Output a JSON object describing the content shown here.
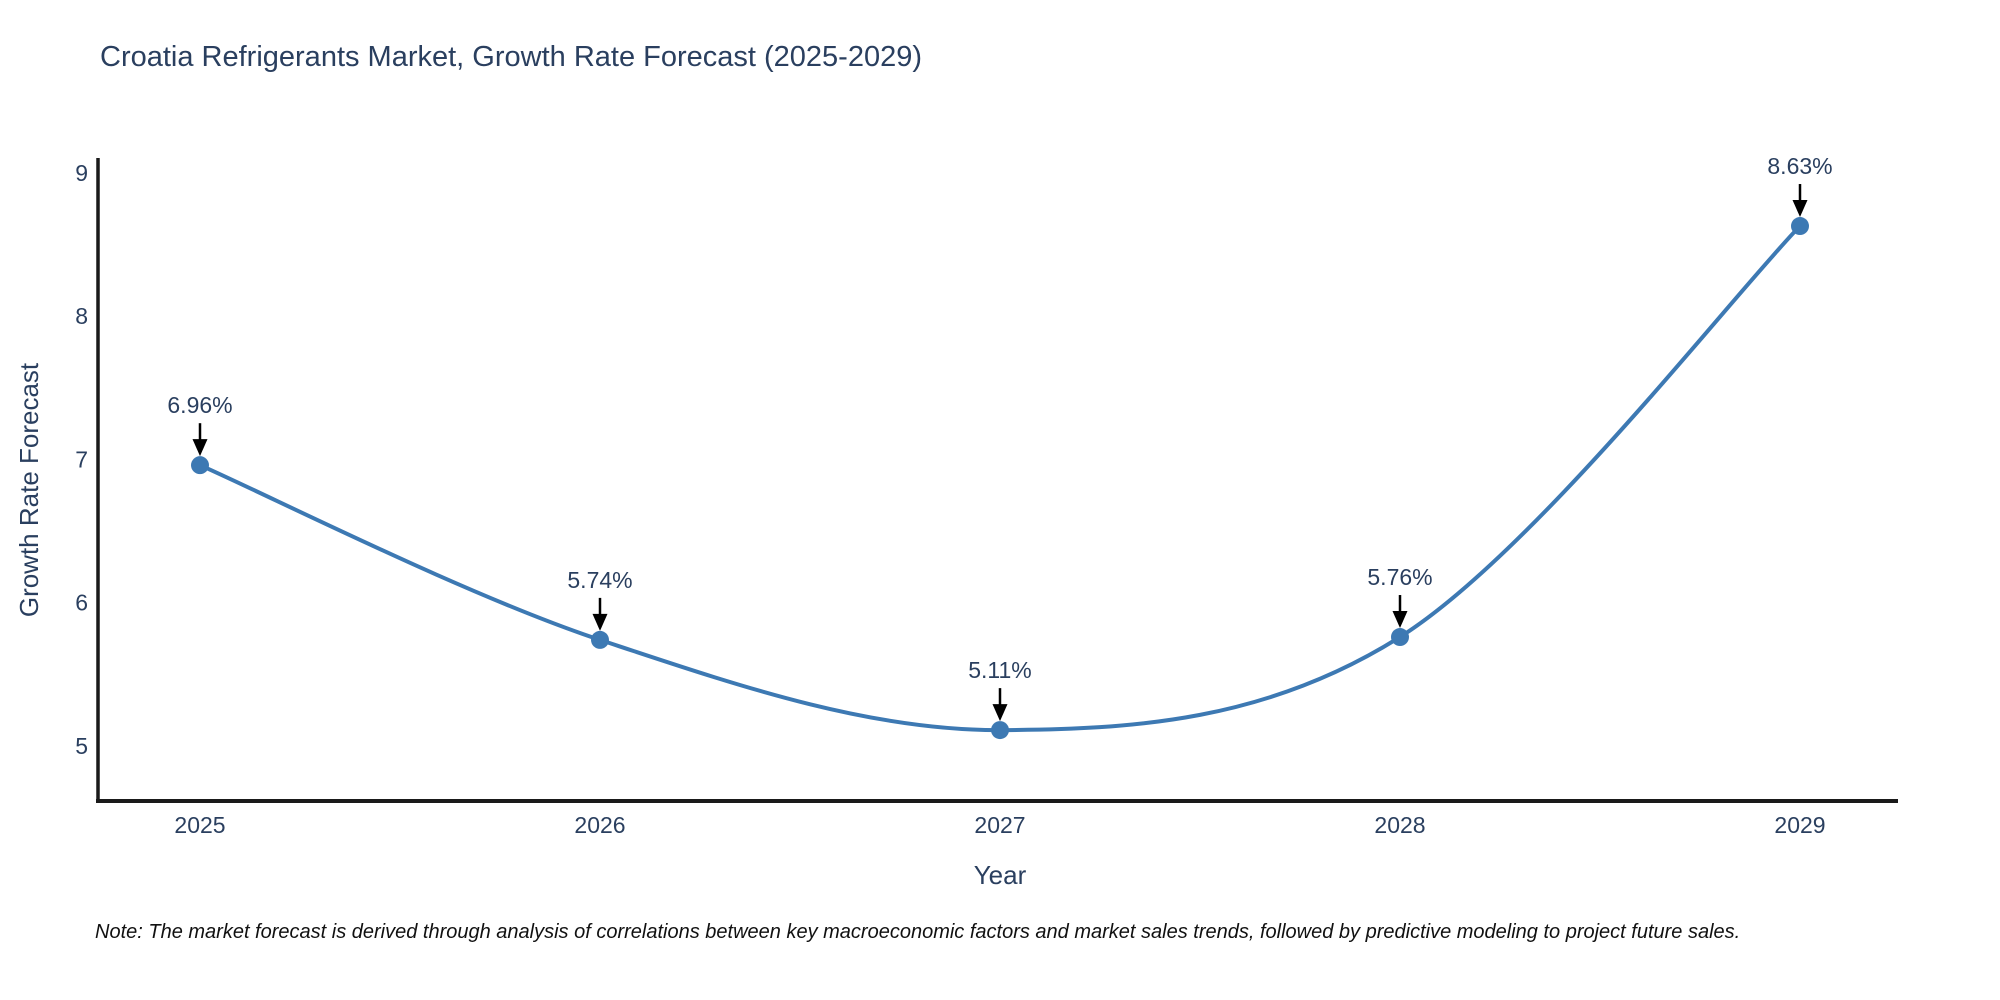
{
  "colors": {
    "line": "#3d79b3",
    "marker": "#3d79b3",
    "axis": "#1a1a1a",
    "text": "#2a3f5f",
    "note_text": "#111111",
    "arrow": "#000000",
    "background": "#ffffff"
  },
  "chart_data": {
    "type": "line",
    "line_shape": "spline",
    "title": "Croatia Refrigerants Market, Growth Rate Forecast (2025-2029)",
    "xlabel": "Year",
    "ylabel": "Growth Rate Forecast",
    "note": "Note: The market forecast is derived through analysis of correlations between key macroeconomic factors and market sales trends, followed by predictive modeling to project future sales.",
    "x": [
      2025,
      2026,
      2027,
      2028,
      2029
    ],
    "values": [
      6.96,
      5.74,
      5.11,
      5.76,
      8.63
    ],
    "labels": [
      "6.96%",
      "5.74%",
      "5.11%",
      "5.76%",
      "8.63%"
    ],
    "yticks": [
      5,
      6,
      7,
      8,
      9
    ],
    "xticks": [
      "2025",
      "2026",
      "2027",
      "2028",
      "2029"
    ],
    "xlim": [
      2024.745,
      2029.245
    ],
    "ylim": [
      4.615,
      9.105
    ],
    "grid": false,
    "legend": "none",
    "annotation_style": "value label with downward arrow to each marker"
  }
}
